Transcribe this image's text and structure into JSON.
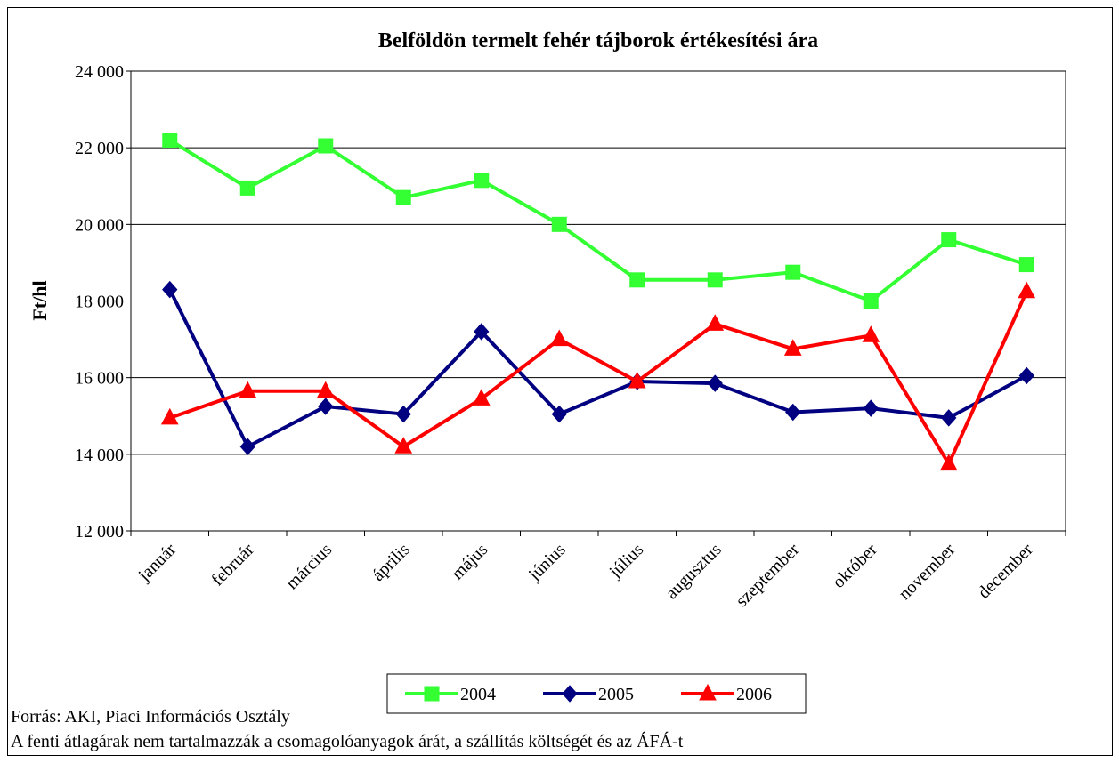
{
  "chart_data": {
    "type": "line",
    "title": "Belföldön termelt fehér tájborok értékesítési ára",
    "y_label": "Ft/hl",
    "categories": [
      "január",
      "február",
      "március",
      "április",
      "május",
      "június",
      "július",
      "augusztus",
      "szeptember",
      "október",
      "november",
      "december"
    ],
    "series": [
      {
        "name": "2004",
        "color": "#33ff33",
        "marker": "square",
        "values": [
          22200,
          20950,
          22050,
          20700,
          21150,
          20000,
          18550,
          18550,
          18750,
          18000,
          19600,
          18950
        ]
      },
      {
        "name": "2005",
        "color": "#000080",
        "marker": "diamond",
        "values": [
          18300,
          14200,
          15250,
          15050,
          17200,
          15050,
          15900,
          15850,
          15100,
          15200,
          14950,
          16050
        ]
      },
      {
        "name": "2006",
        "color": "#ff0000",
        "marker": "triangle",
        "values": [
          14950,
          15650,
          15650,
          14200,
          15450,
          17000,
          15900,
          17400,
          16750,
          17100,
          13750,
          18250
        ]
      }
    ],
    "ylim": [
      12000,
      24000
    ],
    "yticks": [
      {
        "value": 12000,
        "label": "12 000"
      },
      {
        "value": 14000,
        "label": "14 000"
      },
      {
        "value": 16000,
        "label": "16 000"
      },
      {
        "value": 18000,
        "label": "18 000"
      },
      {
        "value": 20000,
        "label": "20 000"
      },
      {
        "value": 22000,
        "label": "22 000"
      },
      {
        "value": 24000,
        "label": "24 000"
      }
    ],
    "grid": true,
    "legend": "bottom",
    "notes": [
      "Forrás: AKI, Piaci Információs Osztály",
      "A fenti átlagárak nem tartalmazzák a csomagolóanyagok árát, a szállítás költségét  és az ÁFÁ-t"
    ]
  }
}
